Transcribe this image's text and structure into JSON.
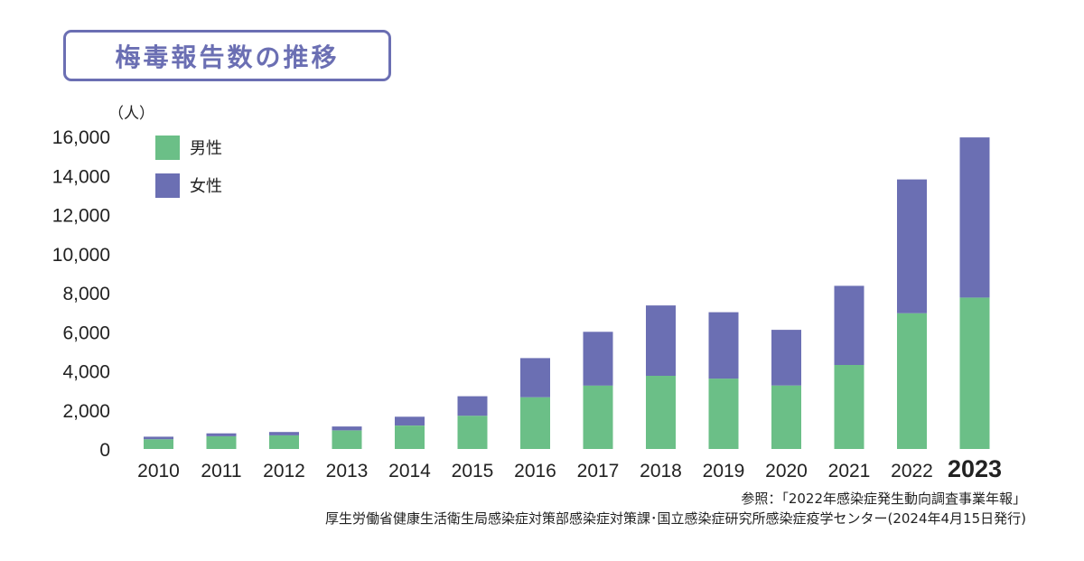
{
  "title": "梅毒報告数の推移",
  "chart_data": {
    "type": "bar",
    "stacked": true,
    "unit_label": "（人）",
    "categories": [
      "2010",
      "2011",
      "2012",
      "2013",
      "2014",
      "2015",
      "2016",
      "2017",
      "2018",
      "2019",
      "2020",
      "2021",
      "2022",
      "2023"
    ],
    "highlight_category": "2023",
    "series": [
      {
        "name": "男性",
        "color": "#6bbf87",
        "values": [
          500,
          650,
          700,
          950,
          1200,
          1700,
          2650,
          3250,
          3750,
          3600,
          3250,
          4300,
          6950,
          7750
        ]
      },
      {
        "name": "女性",
        "color": "#6b6fb3",
        "values": [
          130,
          150,
          170,
          200,
          450,
          1000,
          2000,
          2750,
          3600,
          3400,
          2850,
          4050,
          6850,
          8200
        ]
      }
    ],
    "ylim": [
      0,
      16000
    ],
    "yticks": [
      0,
      2000,
      4000,
      6000,
      8000,
      10000,
      12000,
      14000,
      16000
    ],
    "ytick_labels": [
      "0",
      "2,000",
      "4,000",
      "6,000",
      "8,000",
      "10,000",
      "12,000",
      "14,000",
      "16,000"
    ],
    "legend_position": "top-left",
    "grid": false
  },
  "source": {
    "line1": "参照：「2022年感染症発生動向調査事業年報」",
    "line2": "厚生労働省健康生活衛生局感染症対策部感染症対策課･国立感染症研究所感染症疫学センター(2024年4月15日発行)"
  }
}
